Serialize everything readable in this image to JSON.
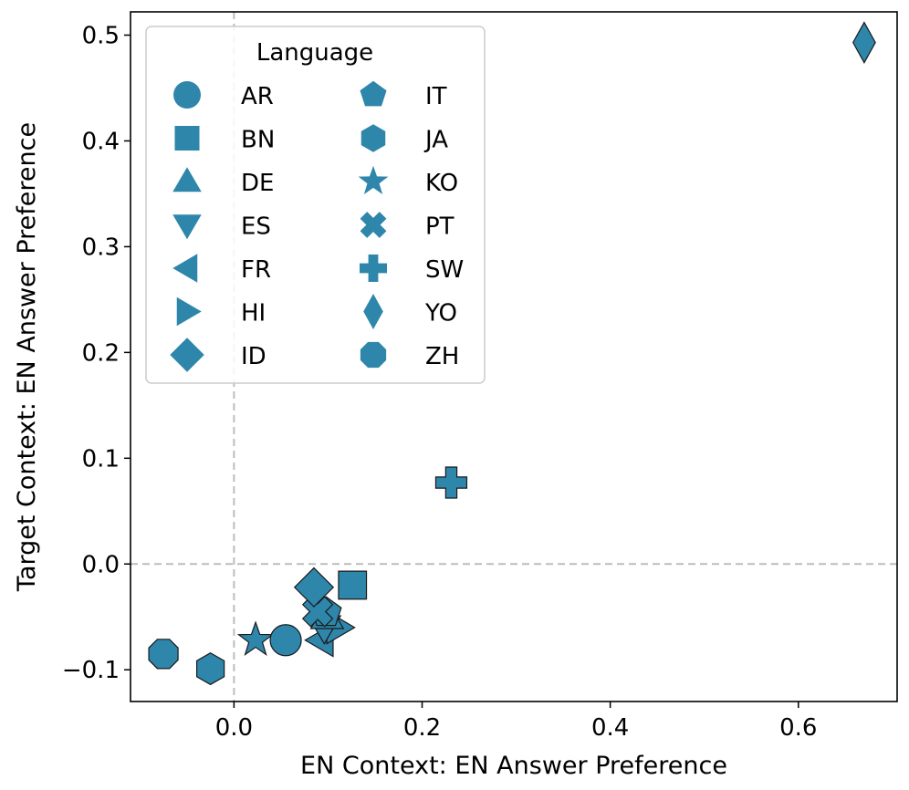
{
  "chart_data": {
    "type": "scatter",
    "title": "",
    "xlabel": "EN Context: EN Answer Preference",
    "ylabel": "Target Context: EN Answer Preference",
    "xlim": [
      -0.11,
      0.705
    ],
    "ylim": [
      -0.13,
      0.522
    ],
    "xticks": [
      0.0,
      0.2,
      0.4,
      0.6
    ],
    "xtick_labels": [
      "0.0",
      "0.2",
      "0.4",
      "0.6"
    ],
    "yticks": [
      -0.1,
      0.0,
      0.1,
      0.2,
      0.3,
      0.4,
      0.5
    ],
    "ytick_labels": [
      "−0.1",
      "0.0",
      "0.1",
      "0.2",
      "0.3",
      "0.4",
      "0.5"
    ],
    "reference_lines": {
      "x": 0,
      "y": 0
    },
    "marker_color": "#2e86ab",
    "marker_edge_color": "#1a1a1a",
    "legend": {
      "title": "Language",
      "position": "top-left",
      "columns": 2
    },
    "points": [
      {
        "label": "AR",
        "marker": "circle",
        "x": 0.055,
        "y": -0.072
      },
      {
        "label": "BN",
        "marker": "square",
        "x": 0.126,
        "y": -0.02
      },
      {
        "label": "DE",
        "marker": "triangle-up",
        "x": 0.099,
        "y": -0.05
      },
      {
        "label": "ES",
        "marker": "triangle-down",
        "x": 0.096,
        "y": -0.06
      },
      {
        "label": "FR",
        "marker": "triangle-left",
        "x": 0.093,
        "y": -0.072
      },
      {
        "label": "HI",
        "marker": "triangle-right",
        "x": 0.111,
        "y": -0.06
      },
      {
        "label": "ID",
        "marker": "diamond",
        "x": 0.085,
        "y": -0.022
      },
      {
        "label": "IT",
        "marker": "pentagon",
        "x": 0.098,
        "y": -0.046
      },
      {
        "label": "JA",
        "marker": "hexagon",
        "x": -0.025,
        "y": -0.099
      },
      {
        "label": "KO",
        "marker": "star",
        "x": 0.023,
        "y": -0.072
      },
      {
        "label": "PT",
        "marker": "x",
        "x": 0.089,
        "y": -0.045
      },
      {
        "label": "SW",
        "marker": "plus",
        "x": 0.231,
        "y": 0.077
      },
      {
        "label": "YO",
        "marker": "thin-diamond",
        "x": 0.67,
        "y": 0.493
      },
      {
        "label": "ZH",
        "marker": "octagon",
        "x": -0.075,
        "y": -0.085
      }
    ]
  }
}
